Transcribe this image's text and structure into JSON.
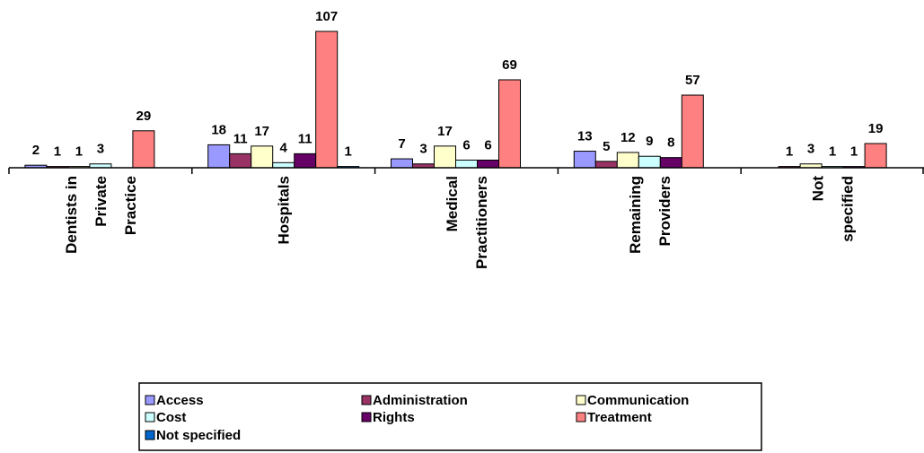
{
  "chart_data": {
    "type": "bar",
    "categories": [
      [
        "Dentists in",
        "Private",
        "Practice"
      ],
      [
        "Hospitals"
      ],
      [
        "Medical",
        "Practitioners"
      ],
      [
        "Remaining",
        "Providers"
      ],
      [
        "Not",
        "specified"
      ]
    ],
    "series": [
      {
        "name": "Access",
        "color": "#9999ff",
        "values": [
          2,
          18,
          7,
          13,
          null
        ]
      },
      {
        "name": "Administration",
        "color": "#993366",
        "values": [
          1,
          11,
          3,
          5,
          1
        ]
      },
      {
        "name": "Communication",
        "color": "#ffffcc",
        "values": [
          1,
          17,
          17,
          12,
          3
        ]
      },
      {
        "name": "Cost",
        "color": "#ccffff",
        "values": [
          3,
          4,
          6,
          9,
          1
        ]
      },
      {
        "name": "Rights",
        "color": "#660066",
        "values": [
          null,
          11,
          6,
          8,
          1
        ]
      },
      {
        "name": "Treatment",
        "color": "#ff8080",
        "values": [
          29,
          107,
          69,
          57,
          19
        ]
      },
      {
        "name": "Not specified",
        "color": "#0066cc",
        "values": [
          null,
          1,
          null,
          null,
          null
        ]
      }
    ],
    "ylim": [
      0,
      107
    ]
  }
}
